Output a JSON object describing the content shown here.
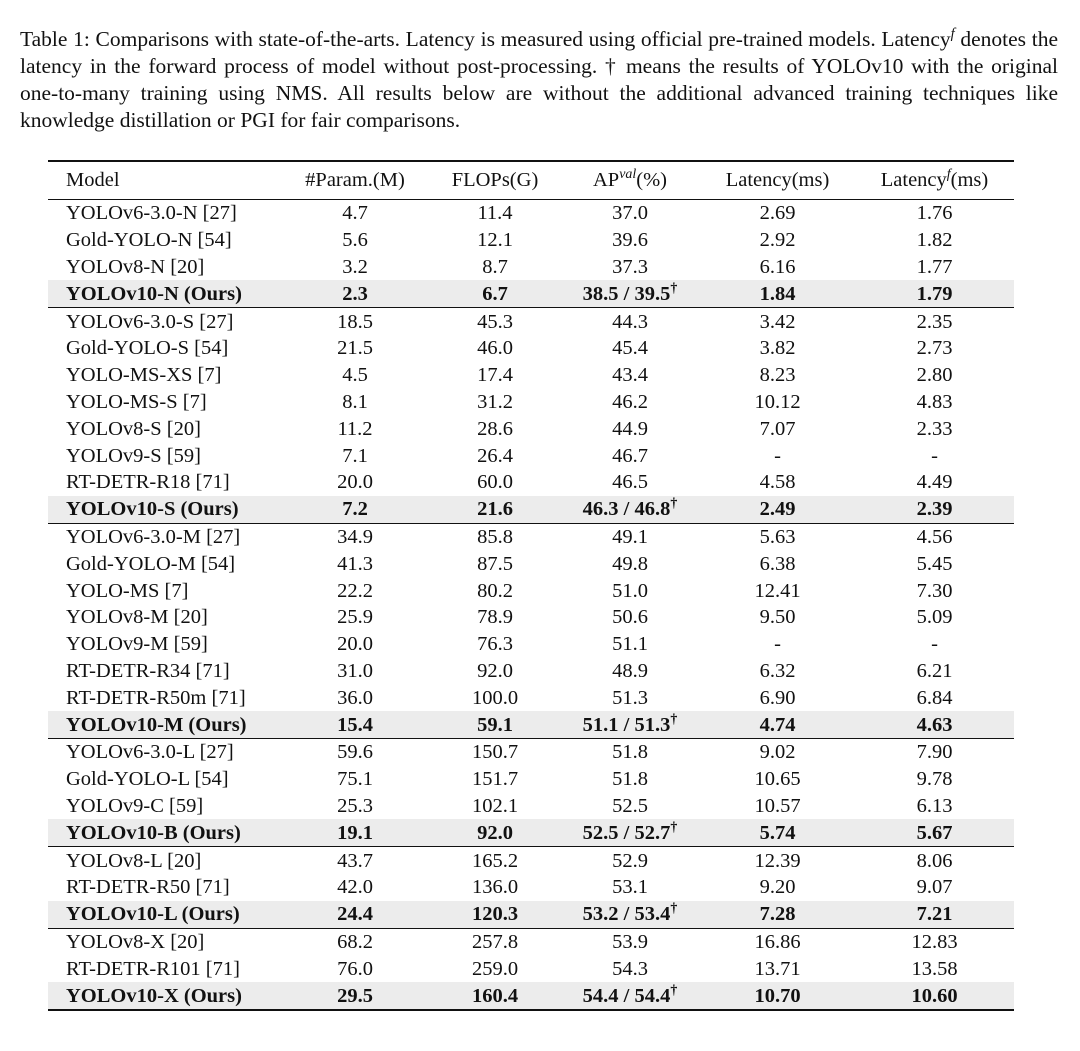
{
  "caption": {
    "before": "Table 1: Comparisons with state-of-the-arts. Latency is measured using official pre-trained models. Latency",
    "sup": "f",
    "after": " denotes the latency in the forward process of model without post-processing. † means the results of YOLOv10 with the original one-to-many training using NMS. All results below are without the additional advanced training techniques like knowledge distillation or PGI for fair comparisons."
  },
  "table": {
    "header": [
      "Model",
      "#Param.(M)",
      "FLOPs(G)",
      {
        "base": "AP",
        "sup": "val",
        "tail": "(%)"
      },
      "Latency(ms)",
      {
        "base": "Latency",
        "sup": "f",
        "tail": "(ms)"
      }
    ],
    "groups": [
      {
        "rows": [
          [
            "YOLOv6-3.0-N [27]",
            "4.7",
            "11.4",
            "37.0",
            "2.69",
            "1.76"
          ],
          [
            "Gold-YOLO-N [54]",
            "5.6",
            "12.1",
            "39.6",
            "2.92",
            "1.82"
          ],
          [
            "YOLOv8-N [20]",
            "3.2",
            "8.7",
            "37.3",
            "6.16",
            "1.77"
          ],
          [
            "YOLOv10-N (Ours)",
            "2.3",
            "6.7",
            {
              "text": "38.5 / 39.5",
              "sup": "†"
            },
            "1.84",
            "1.79"
          ]
        ]
      },
      {
        "rows": [
          [
            "YOLOv6-3.0-S [27]",
            "18.5",
            "45.3",
            "44.3",
            "3.42",
            "2.35"
          ],
          [
            "Gold-YOLO-S [54]",
            "21.5",
            "46.0",
            "45.4",
            "3.82",
            "2.73"
          ],
          [
            "YOLO-MS-XS [7]",
            "4.5",
            "17.4",
            "43.4",
            "8.23",
            "2.80"
          ],
          [
            "YOLO-MS-S [7]",
            "8.1",
            "31.2",
            "46.2",
            "10.12",
            "4.83"
          ],
          [
            "YOLOv8-S [20]",
            "11.2",
            "28.6",
            "44.9",
            "7.07",
            "2.33"
          ],
          [
            "YOLOv9-S [59]",
            "7.1",
            "26.4",
            "46.7",
            "-",
            "-"
          ],
          [
            "RT-DETR-R18 [71]",
            "20.0",
            "60.0",
            "46.5",
            "4.58",
            "4.49"
          ],
          [
            "YOLOv10-S (Ours)",
            "7.2",
            "21.6",
            {
              "text": "46.3 / 46.8",
              "sup": "†"
            },
            "2.49",
            "2.39"
          ]
        ]
      },
      {
        "rows": [
          [
            "YOLOv6-3.0-M [27]",
            "34.9",
            "85.8",
            "49.1",
            "5.63",
            "4.56"
          ],
          [
            "Gold-YOLO-M [54]",
            "41.3",
            "87.5",
            "49.8",
            "6.38",
            "5.45"
          ],
          [
            "YOLO-MS [7]",
            "22.2",
            "80.2",
            "51.0",
            "12.41",
            "7.30"
          ],
          [
            "YOLOv8-M [20]",
            "25.9",
            "78.9",
            "50.6",
            "9.50",
            "5.09"
          ],
          [
            "YOLOv9-M [59]",
            "20.0",
            "76.3",
            "51.1",
            "-",
            "-"
          ],
          [
            "RT-DETR-R34 [71]",
            "31.0",
            "92.0",
            "48.9",
            "6.32",
            "6.21"
          ],
          [
            "RT-DETR-R50m [71]",
            "36.0",
            "100.0",
            "51.3",
            "6.90",
            "6.84"
          ],
          [
            "YOLOv10-M (Ours)",
            "15.4",
            "59.1",
            {
              "text": "51.1 / 51.3",
              "sup": "†"
            },
            "4.74",
            "4.63"
          ]
        ]
      },
      {
        "rows": [
          [
            "YOLOv6-3.0-L [27]",
            "59.6",
            "150.7",
            "51.8",
            "9.02",
            "7.90"
          ],
          [
            "Gold-YOLO-L [54]",
            "75.1",
            "151.7",
            "51.8",
            "10.65",
            "9.78"
          ],
          [
            "YOLOv9-C [59]",
            "25.3",
            "102.1",
            "52.5",
            "10.57",
            "6.13"
          ],
          [
            "YOLOv10-B (Ours)",
            "19.1",
            "92.0",
            {
              "text": "52.5 / 52.7",
              "sup": "†"
            },
            "5.74",
            "5.67"
          ]
        ]
      },
      {
        "rows": [
          [
            "YOLOv8-L [20]",
            "43.7",
            "165.2",
            "52.9",
            "12.39",
            "8.06"
          ],
          [
            "RT-DETR-R50 [71]",
            "42.0",
            "136.0",
            "53.1",
            "9.20",
            "9.07"
          ],
          [
            "YOLOv10-L (Ours)",
            "24.4",
            "120.3",
            {
              "text": "53.2 / 53.4",
              "sup": "†"
            },
            "7.28",
            "7.21"
          ]
        ]
      },
      {
        "rows": [
          [
            "YOLOv8-X [20]",
            "68.2",
            "257.8",
            "53.9",
            "16.86",
            "12.83"
          ],
          [
            "RT-DETR-R101 [71]",
            "76.0",
            "259.0",
            "54.3",
            "13.71",
            "13.58"
          ],
          [
            "YOLOv10-X (Ours)",
            "29.5",
            "160.4",
            {
              "text": "54.4 / 54.4",
              "sup": "†"
            },
            "10.70",
            "10.60"
          ]
        ]
      }
    ]
  }
}
